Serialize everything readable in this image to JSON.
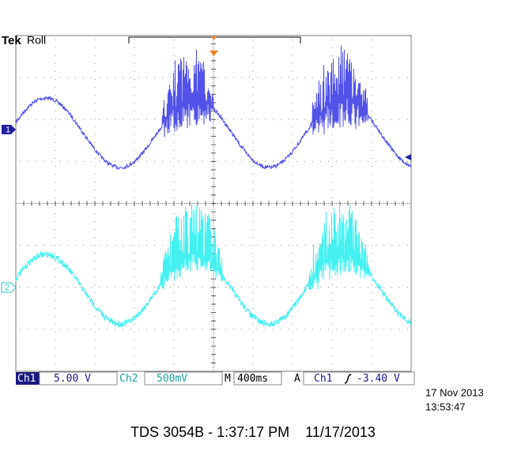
{
  "header": {
    "brand": "Tek",
    "mode": "Roll"
  },
  "channel_markers": {
    "ch1": "1",
    "ch2": "2"
  },
  "status_bar": {
    "ch1_label": "Ch1",
    "ch1_scale": "5.00 V",
    "ch2_label": "Ch2",
    "ch2_scale": "500mV",
    "time_label": "M",
    "time_scale": "400ms",
    "trigger_label": "A",
    "trigger_source": "Ch1",
    "trigger_level": "-3.40 V"
  },
  "timestamp": {
    "date": "17 Nov 2013",
    "time": "13:53:47"
  },
  "footer": "TDS 3054B - 1:37:17 PM    11/17/2013"
}
